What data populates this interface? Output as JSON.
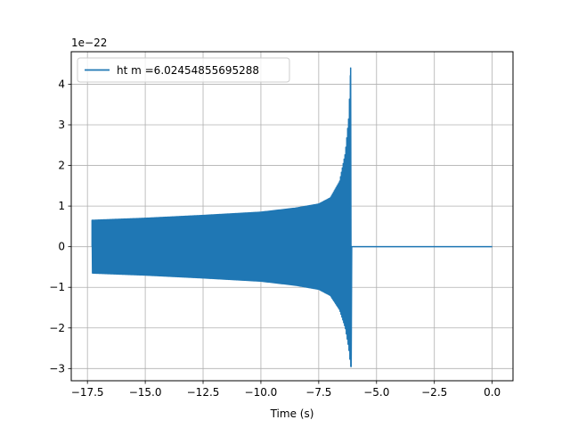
{
  "chart_data": {
    "type": "line",
    "title": "",
    "xlabel": "Time (s)",
    "ylabel": "",
    "offset_label": "1e−22",
    "xlim": [
      -18.2,
      0.9
    ],
    "ylim": [
      -3.3,
      4.8
    ],
    "x_ticks": [
      -17.5,
      -15.0,
      -12.5,
      -10.0,
      -7.5,
      -5.0,
      -2.5,
      0.0
    ],
    "x_tick_labels": [
      "−17.5",
      "−15.0",
      "−12.5",
      "−10.0",
      "−7.5",
      "−5.0",
      "−2.5",
      "0.0"
    ],
    "y_ticks": [
      -3,
      -2,
      -1,
      0,
      1,
      2,
      3,
      4
    ],
    "y_tick_labels": [
      "−3",
      "−2",
      "−1",
      "0",
      "1",
      "2",
      "3",
      "4"
    ],
    "grid": true,
    "legend_position": "top-left",
    "series": [
      {
        "name": "ht m =6.02454855695288",
        "color": "#1f77b4",
        "waveform": {
          "start_time": -17.3,
          "merger_time": -6.1,
          "end_time": 0.0,
          "upper_envelope": [
            [
              -17.3,
              0.65
            ],
            [
              -15.0,
              0.7
            ],
            [
              -12.5,
              0.77
            ],
            [
              -10.0,
              0.85
            ],
            [
              -8.5,
              0.95
            ],
            [
              -7.5,
              1.05
            ],
            [
              -7.0,
              1.2
            ],
            [
              -6.6,
              1.6
            ],
            [
              -6.35,
              2.3
            ],
            [
              -6.2,
              3.2
            ],
            [
              -6.12,
              4.4
            ]
          ],
          "lower_envelope": [
            [
              -17.3,
              -0.65
            ],
            [
              -15.0,
              -0.7
            ],
            [
              -12.5,
              -0.77
            ],
            [
              -10.0,
              -0.85
            ],
            [
              -8.5,
              -0.95
            ],
            [
              -7.5,
              -1.05
            ],
            [
              -7.0,
              -1.2
            ],
            [
              -6.6,
              -1.55
            ],
            [
              -6.35,
              -2.0
            ],
            [
              -6.2,
              -2.5
            ],
            [
              -6.12,
              -2.95
            ]
          ],
          "post_merger_value": 0.0
        }
      }
    ]
  }
}
